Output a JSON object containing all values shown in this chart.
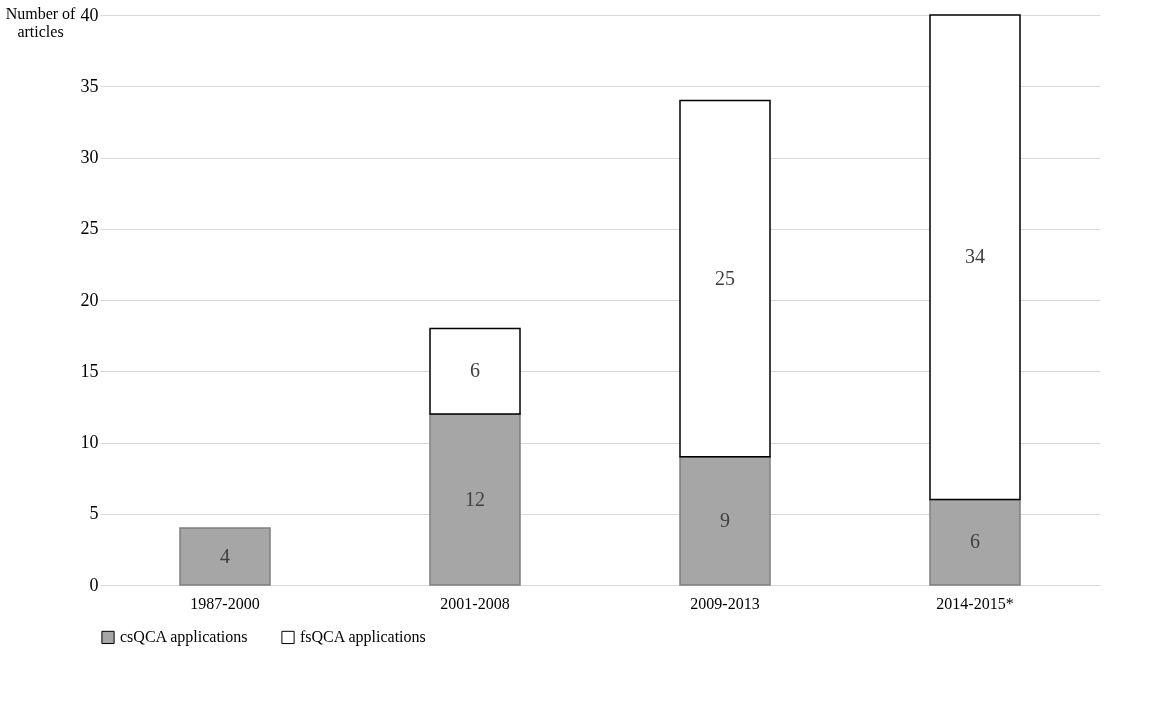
{
  "chart_data": {
    "type": "bar",
    "stacked": true,
    "ylabel": "Number of articles",
    "categories": [
      "1987-2000",
      "2001-2008",
      "2009-2013",
      "2014-2015*"
    ],
    "series": [
      {
        "name": "csQCA applications",
        "color": "#a6a6a6",
        "values": [
          4,
          12,
          9,
          6
        ]
      },
      {
        "name": "fsQCA applications",
        "color": "#ffffff",
        "values": [
          null,
          6,
          25,
          34
        ]
      }
    ],
    "ylim": [
      0,
      40
    ],
    "yticks": [
      0,
      5,
      10,
      15,
      20,
      25,
      30,
      35,
      40
    ],
    "grid": "y",
    "legend": "bottom",
    "data_labels": true
  }
}
